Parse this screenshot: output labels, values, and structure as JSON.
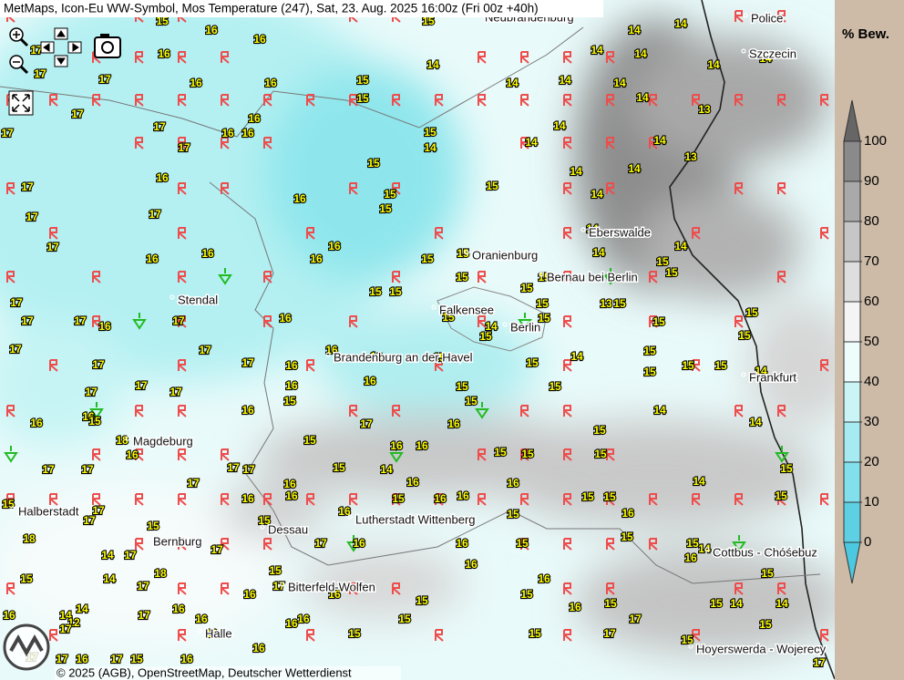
{
  "header": {
    "title": "MetMaps, Icon-Eu WW-Symbol, Mos Temperature (247), Sat, 23. Aug. 2025 16:00z (Fri 00z +40h)"
  },
  "legend": {
    "title": "% Bew.",
    "ticks": [
      0,
      10,
      20,
      30,
      40,
      50,
      60,
      70,
      80,
      90,
      100
    ]
  },
  "cities": [
    "Neubrandenburg",
    "Police",
    "Szczecin",
    "Eberswalde",
    "Oranienburg",
    "Bernau bei Berlin",
    "Stendal",
    "Falkensee",
    "Berlin",
    "Brandenburg an der Havel",
    "Frankfurt",
    "Magdeburg",
    "Lutherstadt Wittenberg",
    "Dessau",
    "Halberstadt",
    "Bernburg",
    "Cottbus - Chóśebuz",
    "Bitterfeld-Wolfen",
    "Halle",
    "Hoyerswerda - Wojerecy"
  ],
  "temperatures": [
    15,
    16,
    16,
    16,
    17,
    17,
    17,
    16,
    16,
    15,
    15,
    14,
    14,
    14,
    15,
    14,
    14,
    14,
    14,
    14,
    14,
    14,
    14,
    13,
    17,
    17,
    17,
    16,
    16,
    16,
    17,
    15,
    14,
    14,
    14,
    14,
    13,
    14,
    14,
    15,
    15,
    14,
    16,
    17,
    15,
    15,
    16,
    17,
    17,
    14,
    14,
    16,
    16,
    15,
    17,
    16,
    16,
    15,
    14,
    15,
    15,
    15,
    15,
    17,
    15,
    15,
    15,
    15,
    13,
    15,
    17,
    17,
    16,
    17,
    16,
    15,
    14,
    15,
    15,
    15,
    15,
    17,
    17,
    16,
    16,
    15,
    14,
    15,
    15,
    17,
    17,
    16,
    15,
    15,
    15,
    15,
    14,
    17,
    17,
    17,
    16,
    16,
    15,
    15,
    15,
    15,
    16,
    14,
    16,
    16,
    15,
    17,
    16,
    15,
    14,
    18,
    16,
    15,
    16,
    16,
    15,
    15,
    15,
    17,
    17,
    15,
    14,
    15,
    17,
    17,
    17,
    16,
    16,
    16,
    14,
    15,
    17,
    16,
    16,
    15,
    16,
    16,
    15,
    15,
    15,
    17,
    15,
    16,
    15,
    16,
    15,
    18,
    17,
    17,
    16,
    16,
    15,
    15,
    15,
    14,
    14,
    17,
    18,
    15,
    16,
    16,
    15,
    14,
    17,
    17,
    16,
    16,
    15,
    15,
    14,
    14,
    12,
    17,
    17,
    16,
    16,
    16,
    16,
    16,
    15,
    15,
    15,
    14,
    14,
    16,
    15,
    16,
    17,
    16,
    16,
    15,
    15,
    15,
    15,
    17,
    17,
    17,
    17,
    16,
    17,
    15,
    16
  ],
  "footer": {
    "copyright": "© 2025 (AGB), OpenStreetMap, Deutscher Wetterdienst"
  }
}
